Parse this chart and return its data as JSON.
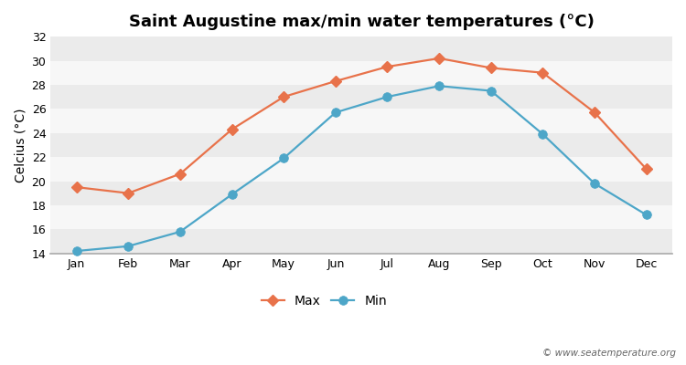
{
  "title": "Saint Augustine max/min water temperatures (°C)",
  "ylabel": "Celcius (°C)",
  "months": [
    "Jan",
    "Feb",
    "Mar",
    "Apr",
    "May",
    "Jun",
    "Jul",
    "Aug",
    "Sep",
    "Oct",
    "Nov",
    "Dec"
  ],
  "max_temps": [
    19.5,
    19.0,
    20.6,
    24.3,
    27.0,
    28.3,
    29.5,
    30.2,
    29.4,
    29.0,
    25.7,
    21.0
  ],
  "min_temps": [
    14.2,
    14.6,
    15.8,
    18.9,
    21.9,
    25.7,
    27.0,
    27.9,
    27.5,
    23.9,
    19.8,
    17.2
  ],
  "max_color": "#e8724a",
  "min_color": "#4da6c8",
  "fig_bg_color": "#ffffff",
  "band_colors": [
    "#ebebeb",
    "#f7f7f7"
  ],
  "ylim": [
    14,
    32
  ],
  "yticks": [
    14,
    16,
    18,
    20,
    22,
    24,
    26,
    28,
    30,
    32
  ],
  "watermark": "© www.seatemperature.org",
  "title_fontsize": 13,
  "label_fontsize": 10,
  "tick_fontsize": 9,
  "legend_fontsize": 10,
  "marker_max": "D",
  "marker_min": "o",
  "marker_size_max": 6,
  "marker_size_min": 7,
  "line_width": 1.6
}
